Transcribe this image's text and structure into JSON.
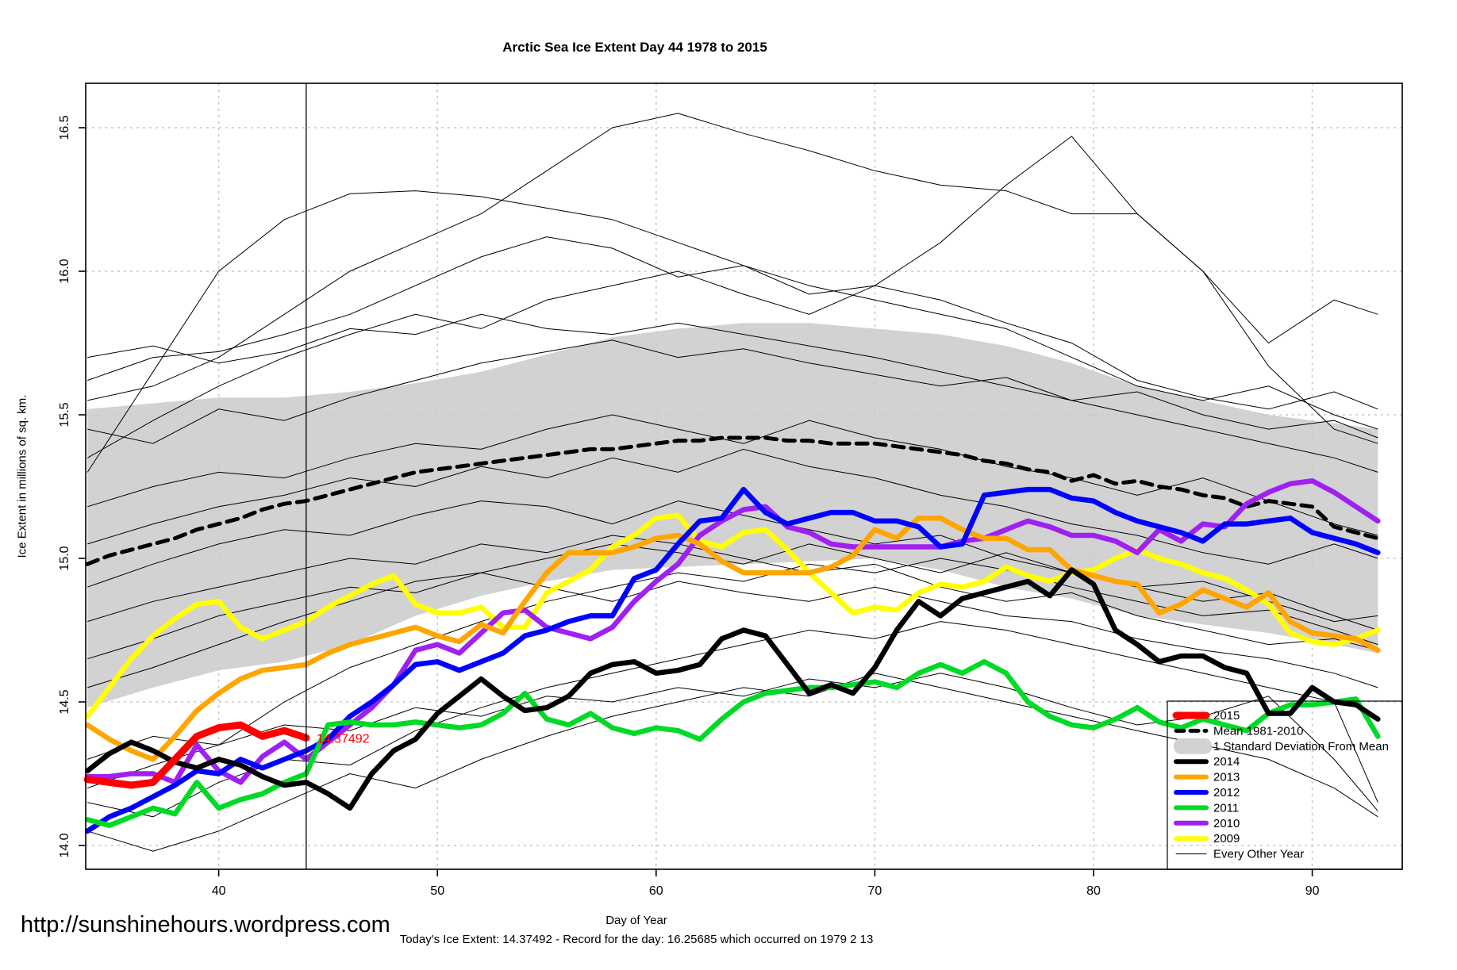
{
  "title": "Arctic Sea Ice Extent Day 44 1978 to 2015",
  "axes": {
    "x": {
      "label": "Day of Year",
      "ticks": [
        40,
        50,
        60,
        70,
        80,
        90
      ],
      "range": [
        33.9,
        94.1
      ]
    },
    "y": {
      "label": "Ice Extent in millions of sq. km.",
      "tick_labels": [
        "14.0",
        "14.5",
        "15.0",
        "15.5",
        "16.0",
        "16.5"
      ],
      "ticks": [
        14.0,
        14.5,
        15.0,
        15.5,
        16.0,
        16.5
      ],
      "range": [
        13.92,
        16.66
      ]
    }
  },
  "marker_line_day": 44,
  "annotation": {
    "text": "14.37492",
    "color": "#FF0000",
    "day": 44.4,
    "value": 14.375
  },
  "footer": {
    "subtitle": "Today's Ice Extent: 14.37492  - Record for the day: 16.25685 which occurred on 1979 2 13",
    "url": "http://sunshinehours.wordpress.com"
  },
  "legend": {
    "entries": [
      {
        "label": "2015",
        "swatch": "line",
        "color": "#FF0000",
        "width": 9
      },
      {
        "label": "Mean 1981-2010",
        "swatch": "dashed-line",
        "color": "#000000",
        "width": 5
      },
      {
        "label": "1 Standard Deviation From Mean",
        "swatch": "patch",
        "color": "#D2D2D2",
        "width": 0
      },
      {
        "label": "2014",
        "swatch": "line",
        "color": "#000000",
        "width": 6
      },
      {
        "label": "2013",
        "swatch": "line",
        "color": "#FFA500",
        "width": 6
      },
      {
        "label": "2012",
        "swatch": "line",
        "color": "#0000FF",
        "width": 6
      },
      {
        "label": "2011",
        "swatch": "line",
        "color": "#00D926",
        "width": 6
      },
      {
        "label": "2010",
        "swatch": "line",
        "color": "#A020F0",
        "width": 6
      },
      {
        "label": "2009",
        "swatch": "line",
        "color": "#FFFF00",
        "width": 6
      },
      {
        "label": "Every Other Year",
        "swatch": "line",
        "color": "#000000",
        "width": 1
      }
    ]
  },
  "chart_data": {
    "type": "line",
    "title": "Arctic Sea Ice Extent Day 44 1978 to 2015",
    "xlabel": "Day of Year",
    "ylabel": "Ice Extent in millions of sq. km.",
    "xlim": [
      33.9,
      94.1
    ],
    "ylim": [
      13.92,
      16.66
    ],
    "x_ticks": [
      40,
      50,
      60,
      70,
      80,
      90
    ],
    "y_ticks": [
      14.0,
      14.5,
      15.0,
      15.5,
      16.0,
      16.5
    ],
    "grid": true,
    "legend_position": "bottom-right",
    "vertical_marker_day": 44,
    "band": {
      "label": "1 Standard Deviation From Mean",
      "color": "#D2D2D2",
      "days": [
        34,
        37,
        40,
        43,
        46,
        49,
        52,
        55,
        58,
        61,
        64,
        67,
        70,
        73,
        76,
        79,
        82,
        85,
        88,
        91,
        93
      ],
      "top": [
        15.52,
        15.54,
        15.56,
        15.56,
        15.58,
        15.61,
        15.65,
        15.71,
        15.77,
        15.8,
        15.82,
        15.82,
        15.8,
        15.78,
        15.74,
        15.68,
        15.6,
        15.55,
        15.5,
        15.47,
        15.45
      ],
      "bottom": [
        14.48,
        14.55,
        14.61,
        14.64,
        14.7,
        14.8,
        14.87,
        14.92,
        14.96,
        14.97,
        14.98,
        14.99,
        15.0,
        14.96,
        14.9,
        14.86,
        14.8,
        14.77,
        14.74,
        14.7,
        14.67
      ]
    },
    "series": [
      {
        "name": "Mean 1981-2010",
        "color": "#000000",
        "width": 5,
        "dash": "14,9",
        "day_start": 34,
        "values": [
          14.98,
          15.01,
          15.03,
          15.05,
          15.07,
          15.1,
          15.12,
          15.14,
          15.17,
          15.19,
          15.2,
          15.22,
          15.24,
          15.26,
          15.28,
          15.3,
          15.31,
          15.32,
          15.33,
          15.34,
          15.35,
          15.36,
          15.37,
          15.38,
          15.38,
          15.39,
          15.4,
          15.41,
          15.41,
          15.42,
          15.42,
          15.42,
          15.41,
          15.41,
          15.4,
          15.4,
          15.4,
          15.39,
          15.38,
          15.37,
          15.36,
          15.34,
          15.33,
          15.31,
          15.3,
          15.27,
          15.29,
          15.26,
          15.27,
          15.25,
          15.24,
          15.22,
          15.21,
          15.18,
          15.2,
          15.19,
          15.18,
          15.11,
          15.09,
          15.07
        ]
      },
      {
        "name": "2009",
        "color": "#FFFF00",
        "width": 6.5,
        "day_start": 34,
        "values": [
          14.45,
          14.55,
          14.65,
          14.73,
          14.79,
          14.84,
          14.85,
          14.76,
          14.72,
          14.75,
          14.78,
          14.83,
          14.87,
          14.91,
          14.94,
          14.84,
          14.81,
          14.81,
          14.83,
          14.76,
          14.76,
          14.88,
          14.92,
          14.96,
          15.04,
          15.08,
          15.14,
          15.15,
          15.06,
          15.04,
          15.09,
          15.1,
          15.03,
          14.95,
          14.88,
          14.81,
          14.83,
          14.82,
          14.88,
          14.91,
          14.9,
          14.92,
          14.97,
          14.94,
          14.92,
          14.95,
          14.96,
          15.0,
          15.03,
          15.0,
          14.98,
          14.95,
          14.93,
          14.89,
          14.84,
          14.74,
          14.71,
          14.7,
          14.72,
          14.75
        ]
      },
      {
        "name": "2010",
        "color": "#A020F0",
        "width": 6.5,
        "day_start": 34,
        "values": [
          14.24,
          14.24,
          14.25,
          14.25,
          14.22,
          14.35,
          14.26,
          14.22,
          14.31,
          14.36,
          14.3,
          14.36,
          14.42,
          14.48,
          14.56,
          14.68,
          14.7,
          14.67,
          14.74,
          14.81,
          14.82,
          14.76,
          14.74,
          14.72,
          14.76,
          14.85,
          14.92,
          14.98,
          15.08,
          15.13,
          15.17,
          15.18,
          15.11,
          15.09,
          15.05,
          15.04,
          15.04,
          15.04,
          15.04,
          15.04,
          15.06,
          15.07,
          15.1,
          15.13,
          15.11,
          15.08,
          15.08,
          15.06,
          15.02,
          15.1,
          15.06,
          15.12,
          15.11,
          15.19,
          15.23,
          15.26,
          15.27,
          15.23,
          15.18,
          15.13
        ]
      },
      {
        "name": "2013",
        "color": "#FFA500",
        "width": 6.5,
        "day_start": 34,
        "values": [
          14.42,
          14.37,
          14.33,
          14.3,
          14.38,
          14.47,
          14.53,
          14.58,
          14.61,
          14.62,
          14.63,
          14.67,
          14.7,
          14.72,
          14.74,
          14.76,
          14.73,
          14.71,
          14.77,
          14.74,
          14.85,
          14.95,
          15.02,
          15.02,
          15.02,
          15.04,
          15.07,
          15.08,
          15.05,
          14.99,
          14.95,
          14.95,
          14.95,
          14.95,
          14.97,
          15.01,
          15.1,
          15.07,
          15.14,
          15.14,
          15.1,
          15.07,
          15.07,
          15.03,
          15.03,
          14.96,
          14.94,
          14.92,
          14.91,
          14.81,
          14.84,
          14.89,
          14.86,
          14.83,
          14.88,
          14.78,
          14.74,
          14.73,
          14.72,
          14.68
        ]
      },
      {
        "name": "2012",
        "color": "#0000FF",
        "width": 6.5,
        "day_start": 34,
        "values": [
          14.05,
          14.1,
          14.13,
          14.17,
          14.21,
          14.26,
          14.25,
          14.3,
          14.27,
          14.3,
          14.33,
          14.37,
          14.45,
          14.5,
          14.56,
          14.63,
          14.64,
          14.61,
          14.64,
          14.67,
          14.73,
          14.75,
          14.78,
          14.8,
          14.8,
          14.93,
          14.96,
          15.05,
          15.13,
          15.14,
          15.24,
          15.16,
          15.12,
          15.14,
          15.16,
          15.16,
          15.13,
          15.13,
          15.11,
          15.04,
          15.05,
          15.22,
          15.23,
          15.24,
          15.24,
          15.21,
          15.2,
          15.16,
          15.13,
          15.11,
          15.09,
          15.06,
          15.12,
          15.12,
          15.13,
          15.14,
          15.09,
          15.07,
          15.05,
          15.02
        ]
      },
      {
        "name": "2011",
        "color": "#00D926",
        "width": 6.5,
        "day_start": 34,
        "values": [
          14.09,
          14.07,
          14.1,
          14.13,
          14.11,
          14.22,
          14.13,
          14.16,
          14.18,
          14.22,
          14.25,
          14.42,
          14.43,
          14.42,
          14.42,
          14.43,
          14.42,
          14.41,
          14.42,
          14.46,
          14.53,
          14.44,
          14.42,
          14.46,
          14.41,
          14.39,
          14.41,
          14.4,
          14.37,
          14.44,
          14.5,
          14.53,
          14.54,
          14.55,
          14.55,
          14.56,
          14.57,
          14.55,
          14.6,
          14.63,
          14.6,
          14.64,
          14.6,
          14.5,
          14.45,
          14.42,
          14.41,
          14.44,
          14.48,
          14.43,
          14.41,
          14.44,
          14.42,
          14.4,
          14.46,
          14.49,
          14.49,
          14.5,
          14.51,
          14.38
        ]
      },
      {
        "name": "2014",
        "color": "#000000",
        "width": 6.5,
        "day_start": 34,
        "values": [
          14.26,
          14.32,
          14.36,
          14.33,
          14.29,
          14.27,
          14.3,
          14.28,
          14.24,
          14.21,
          14.22,
          14.18,
          14.13,
          14.25,
          14.33,
          14.37,
          14.46,
          14.52,
          14.58,
          14.52,
          14.47,
          14.48,
          14.52,
          14.6,
          14.63,
          14.64,
          14.6,
          14.61,
          14.63,
          14.72,
          14.75,
          14.73,
          14.63,
          14.53,
          14.56,
          14.53,
          14.62,
          14.75,
          14.85,
          14.8,
          14.86,
          14.88,
          14.9,
          14.92,
          14.87,
          14.96,
          14.91,
          14.75,
          14.7,
          14.64,
          14.66,
          14.66,
          14.62,
          14.6,
          14.46,
          14.46,
          14.55,
          14.5,
          14.49,
          14.44
        ]
      },
      {
        "name": "2015",
        "color": "#FF0000",
        "width": 9,
        "day_start": 34,
        "values": [
          14.23,
          14.22,
          14.21,
          14.22,
          14.3,
          14.38,
          14.41,
          14.42,
          14.38,
          14.4,
          14.375
        ]
      }
    ],
    "other_years": {
      "label": "Every Other Year",
      "color": "#000000",
      "width": 1,
      "days": [
        34,
        37,
        40,
        43,
        46,
        49,
        52,
        55,
        58,
        61,
        64,
        67,
        70,
        73,
        76,
        79,
        82,
        85,
        88,
        91,
        93
      ],
      "lines": [
        [
          15.3,
          15.65,
          16.0,
          16.18,
          16.27,
          16.28,
          16.26,
          16.22,
          16.18,
          16.1,
          16.02,
          15.95,
          15.9,
          15.85,
          15.8,
          15.7,
          15.6,
          15.55,
          15.6,
          15.5,
          15.45
        ],
        [
          15.55,
          15.6,
          15.7,
          15.85,
          16.0,
          16.1,
          16.2,
          16.35,
          16.5,
          16.55,
          16.48,
          16.42,
          16.35,
          16.3,
          16.28,
          16.2,
          16.2,
          16.0,
          15.75,
          15.9,
          15.85
        ],
        [
          15.62,
          15.7,
          15.72,
          15.78,
          15.85,
          15.95,
          16.05,
          16.12,
          16.08,
          15.98,
          16.02,
          15.92,
          15.95,
          16.1,
          16.3,
          16.47,
          16.2,
          16.0,
          15.67,
          15.45,
          15.4
        ],
        [
          15.35,
          15.48,
          15.6,
          15.7,
          15.78,
          15.85,
          15.8,
          15.9,
          15.95,
          16.0,
          15.92,
          15.85,
          15.95,
          15.9,
          15.82,
          15.75,
          15.62,
          15.56,
          15.52,
          15.58,
          15.52
        ],
        [
          15.45,
          15.4,
          15.52,
          15.48,
          15.56,
          15.62,
          15.68,
          15.72,
          15.76,
          15.7,
          15.73,
          15.68,
          15.64,
          15.6,
          15.63,
          15.55,
          15.5,
          15.45,
          15.4,
          15.35,
          15.3
        ],
        [
          15.7,
          15.74,
          15.68,
          15.72,
          15.8,
          15.78,
          15.85,
          15.8,
          15.78,
          15.82,
          15.78,
          15.74,
          15.7,
          15.65,
          15.6,
          15.55,
          15.58,
          15.5,
          15.45,
          15.48,
          15.42
        ],
        [
          15.18,
          15.25,
          15.3,
          15.28,
          15.35,
          15.4,
          15.38,
          15.45,
          15.5,
          15.45,
          15.4,
          15.48,
          15.42,
          15.38,
          15.32,
          15.28,
          15.22,
          15.28,
          15.2,
          15.12,
          15.08
        ],
        [
          15.05,
          15.12,
          15.18,
          15.22,
          15.28,
          15.25,
          15.32,
          15.28,
          15.35,
          15.3,
          15.38,
          15.32,
          15.28,
          15.22,
          15.18,
          15.12,
          15.08,
          15.02,
          14.98,
          15.05,
          15.0
        ],
        [
          14.9,
          14.98,
          15.05,
          15.1,
          15.08,
          15.15,
          15.2,
          15.18,
          15.12,
          15.2,
          15.15,
          15.1,
          15.05,
          15.08,
          15.0,
          14.95,
          14.9,
          14.85,
          14.88,
          14.8,
          14.75
        ],
        [
          14.78,
          14.85,
          14.9,
          14.95,
          15.0,
          14.98,
          15.05,
          15.02,
          15.08,
          15.05,
          15.0,
          14.95,
          14.98,
          14.9,
          14.85,
          14.88,
          14.8,
          14.75,
          14.7,
          14.72,
          14.68
        ],
        [
          14.55,
          14.62,
          14.7,
          14.78,
          14.85,
          14.92,
          14.95,
          15.0,
          15.05,
          15.02,
          14.98,
          15.05,
          15.0,
          14.95,
          15.02,
          14.95,
          14.9,
          14.92,
          14.85,
          14.78,
          14.8
        ],
        [
          14.3,
          14.38,
          14.35,
          14.5,
          14.62,
          14.7,
          14.78,
          14.85,
          14.9,
          14.95,
          14.92,
          14.98,
          14.95,
          15.0,
          14.96,
          14.9,
          14.85,
          14.8,
          14.82,
          14.75,
          14.7
        ],
        [
          14.15,
          14.1,
          14.22,
          14.3,
          14.28,
          14.4,
          14.48,
          14.55,
          14.6,
          14.65,
          14.7,
          14.75,
          14.72,
          14.78,
          14.75,
          14.7,
          14.65,
          14.6,
          14.55,
          14.5,
          14.15
        ],
        [
          14.05,
          13.98,
          14.05,
          14.15,
          14.25,
          14.2,
          14.3,
          14.38,
          14.45,
          14.5,
          14.55,
          14.52,
          14.6,
          14.55,
          14.5,
          14.45,
          14.4,
          14.35,
          14.3,
          14.2,
          14.1
        ],
        [
          14.65,
          14.72,
          14.8,
          14.85,
          14.9,
          14.88,
          14.95,
          14.9,
          14.85,
          14.92,
          14.88,
          14.85,
          14.9,
          14.85,
          14.8,
          14.78,
          14.72,
          14.68,
          14.65,
          14.6,
          14.55
        ],
        [
          14.2,
          14.28,
          14.35,
          14.42,
          14.4,
          14.48,
          14.45,
          14.52,
          14.5,
          14.55,
          14.52,
          14.58,
          14.55,
          14.6,
          14.55,
          14.48,
          14.42,
          14.45,
          14.52,
          14.3,
          14.12
        ]
      ]
    }
  },
  "colors": {
    "grid": "#C9C9C9",
    "border": "#000000",
    "band": "#D2D2D2",
    "background": "#FFFFFF"
  }
}
